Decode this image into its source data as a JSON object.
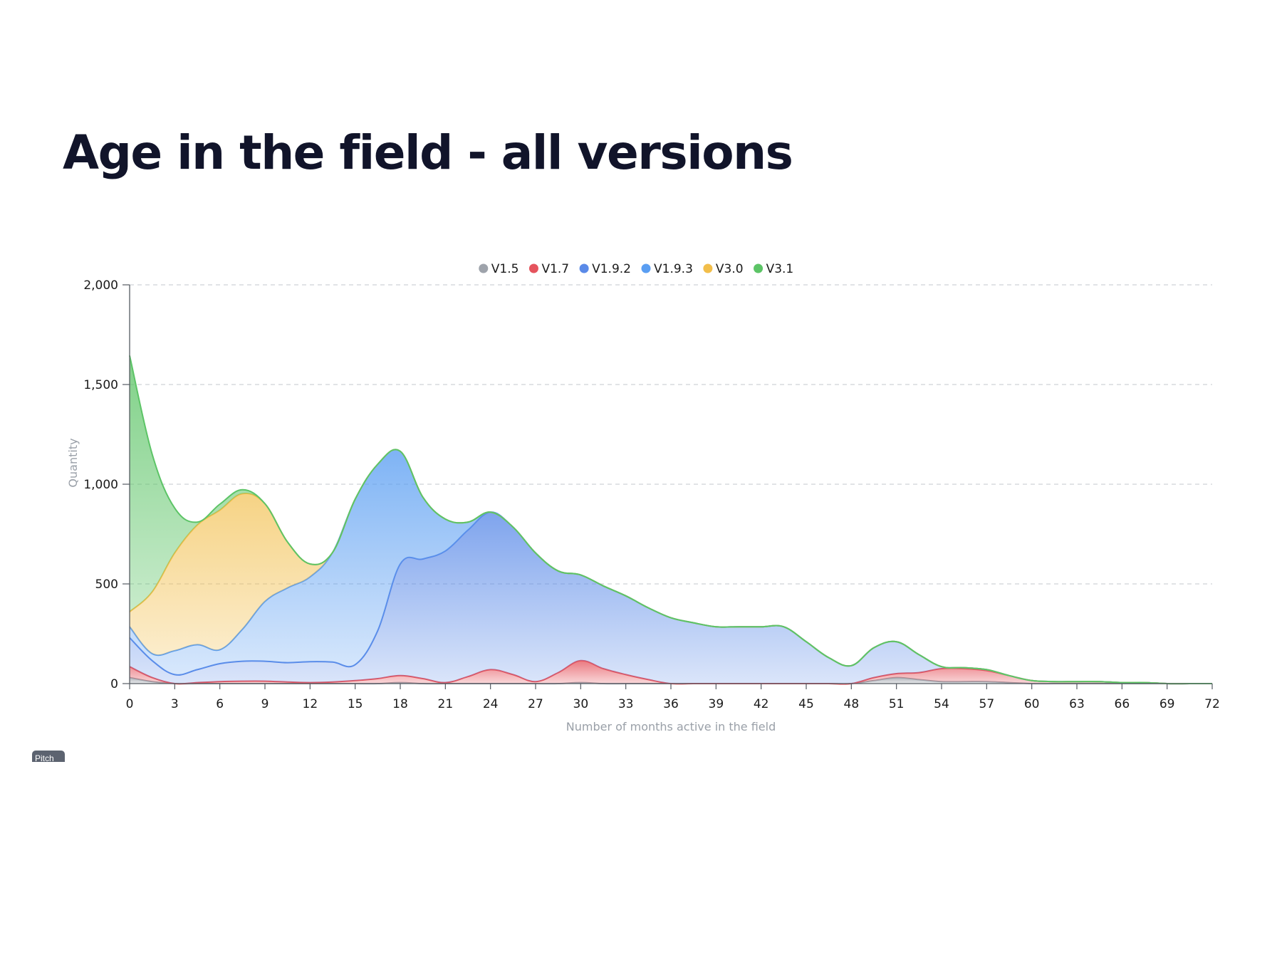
{
  "page": {
    "title": "Age in the field - all versions"
  },
  "badge": {
    "label": "Pitch"
  },
  "chart_data": {
    "type": "area",
    "stacked": true,
    "smooth": true,
    "xlabel": "Number of months active in the field",
    "ylabel": "Quantity",
    "ylim": [
      0,
      2000
    ],
    "yticks": [
      0,
      500,
      1000,
      1500,
      2000
    ],
    "ytick_labels": [
      "0",
      "500",
      "1,000",
      "1,500",
      "2,000"
    ],
    "xlim": [
      0,
      72
    ],
    "xticks": [
      0,
      3,
      6,
      9,
      12,
      15,
      18,
      21,
      24,
      27,
      30,
      33,
      36,
      39,
      42,
      45,
      48,
      51,
      54,
      57,
      60,
      63,
      66,
      69,
      72
    ],
    "grid": "horizontal dashed",
    "legend_position": "top-center",
    "x": [
      0,
      1.5,
      3,
      4.5,
      6,
      7.5,
      9,
      10.5,
      12,
      13.5,
      15,
      16.5,
      18,
      19.5,
      21,
      22.5,
      24,
      25.5,
      27,
      28.5,
      30,
      31.5,
      33,
      34.5,
      36,
      37.5,
      39,
      40.5,
      42,
      43.5,
      45,
      46.5,
      48,
      49.5,
      51,
      52.5,
      54,
      55.5,
      57,
      58.5,
      60,
      61.5,
      63,
      64.5,
      66,
      67.5,
      69,
      70.5,
      72
    ],
    "series": [
      {
        "name": "V1.5",
        "color": "#9ea3ab",
        "values": [
          30,
          10,
          0,
          0,
          0,
          0,
          0,
          0,
          0,
          0,
          0,
          0,
          5,
          0,
          0,
          0,
          0,
          0,
          0,
          0,
          5,
          0,
          0,
          0,
          0,
          0,
          0,
          0,
          0,
          0,
          0,
          0,
          0,
          15,
          30,
          20,
          10,
          10,
          10,
          5,
          0,
          0,
          0,
          0,
          0,
          0,
          0,
          0,
          0
        ]
      },
      {
        "name": "V1.7",
        "color": "#e5545d",
        "values": [
          55,
          20,
          0,
          5,
          10,
          12,
          12,
          8,
          5,
          8,
          15,
          25,
          35,
          25,
          5,
          35,
          70,
          45,
          10,
          55,
          110,
          75,
          45,
          20,
          0,
          0,
          0,
          0,
          0,
          0,
          0,
          0,
          0,
          15,
          20,
          35,
          65,
          65,
          55,
          35,
          15,
          10,
          10,
          10,
          5,
          5,
          0,
          0,
          0
        ]
      },
      {
        "name": "V1.9.2",
        "color": "#5a8ae8",
        "values": [
          145,
          85,
          45,
          65,
          90,
          100,
          100,
          97,
          105,
          100,
          80,
          240,
          560,
          600,
          660,
          735,
          790,
          740,
          645,
          510,
          430,
          415,
          395,
          360,
          330,
          305,
          285,
          285,
          285,
          285,
          210,
          130,
          90,
          150,
          160,
          90,
          10,
          5,
          5,
          0,
          0,
          0,
          0,
          0,
          0,
          0,
          0,
          0,
          0
        ]
      },
      {
        "name": "V1.9.3",
        "color": "#5a9ef2",
        "values": [
          55,
          35,
          120,
          125,
          70,
          160,
          300,
          375,
          425,
          550,
          830,
          835,
          565,
          310,
          160,
          40,
          0,
          0,
          0,
          0,
          0,
          0,
          0,
          0,
          0,
          0,
          0,
          0,
          0,
          0,
          0,
          0,
          0,
          0,
          0,
          0,
          0,
          0,
          0,
          0,
          0,
          0,
          0,
          0,
          0,
          0,
          0,
          0,
          0
        ]
      },
      {
        "name": "V3.0",
        "color": "#f2be4a",
        "values": [
          75,
          310,
          490,
          600,
          700,
          680,
          490,
          230,
          65,
          0,
          0,
          0,
          0,
          0,
          0,
          0,
          0,
          0,
          0,
          0,
          0,
          0,
          0,
          0,
          0,
          0,
          0,
          0,
          0,
          0,
          0,
          0,
          0,
          0,
          0,
          0,
          0,
          0,
          0,
          0,
          0,
          0,
          0,
          0,
          0,
          0,
          0,
          0,
          0
        ]
      },
      {
        "name": "V3.1",
        "color": "#5cc466",
        "values": [
          1285,
          690,
          225,
          15,
          30,
          20,
          0,
          0,
          0,
          0,
          0,
          0,
          0,
          0,
          0,
          0,
          0,
          0,
          0,
          0,
          0,
          0,
          0,
          0,
          0,
          0,
          0,
          0,
          0,
          0,
          0,
          0,
          0,
          0,
          0,
          0,
          0,
          0,
          0,
          0,
          0,
          0,
          0,
          0,
          0,
          0,
          0,
          0,
          0
        ]
      }
    ]
  }
}
